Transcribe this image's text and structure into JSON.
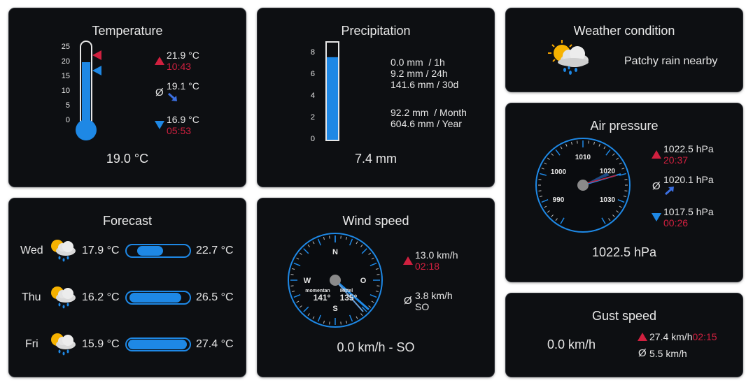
{
  "temperature": {
    "title": "Temperature",
    "scale_ticks": [
      "25",
      "20",
      "15",
      "10",
      "5",
      "0"
    ],
    "fill_level": 0.76,
    "max_value": "21.9 °C",
    "max_time": "10:43",
    "avg_symbol": "Ø",
    "avg_value": "19.1 °C",
    "min_value": "16.9 °C",
    "min_time": "05:53",
    "current": "19.0 °C"
  },
  "precipitation": {
    "title": "Precipitation",
    "scale_ticks": [
      "8",
      "6",
      "4",
      "2",
      "0"
    ],
    "fill_level": 0.85,
    "rows": [
      {
        "value": "0.0 mm",
        "period": "/ 1h"
      },
      {
        "value": "9.2 mm",
        "period": "/ 24h"
      },
      {
        "value": "141.6 mm",
        "period": "/ 30d"
      },
      {
        "value": "92.2 mm",
        "period": "/ Month"
      },
      {
        "value": "604.6 mm",
        "period": "/ Year"
      }
    ],
    "current": "7.4 mm"
  },
  "weather": {
    "title": "Weather condition",
    "icon": "sun-cloud-rain-icon",
    "condition": "Patchy rain nearby"
  },
  "pressure": {
    "title": "Air pressure",
    "dial_labels": [
      "1010",
      "1000",
      "1020",
      "990",
      "1030"
    ],
    "max_value": "1022.5 hPa",
    "max_time": "20:37",
    "avg_symbol": "Ø",
    "avg_value": "1020.1 hPa",
    "min_value": "1017.5 hPa",
    "min_time": "00:26",
    "current": "1022.5 hPa"
  },
  "forecast": {
    "title": "Forecast",
    "days": [
      {
        "day": "Wed",
        "icon": "sun-cloud-rain-icon",
        "low": "17.9 °C",
        "high": "22.7 °C",
        "bar_start": 0.15,
        "bar_end": 0.6
      },
      {
        "day": "Thu",
        "icon": "sun-cloud-rain-icon",
        "low": "16.2 °C",
        "high": "26.5 °C",
        "bar_start": 0.02,
        "bar_end": 0.9
      },
      {
        "day": "Fri",
        "icon": "sun-cloud-rain-icon",
        "low": "15.9 °C",
        "high": "27.4 °C",
        "bar_start": 0.0,
        "bar_end": 1.0
      }
    ]
  },
  "wind": {
    "title": "Wind speed",
    "compass": {
      "n": "N",
      "s": "S",
      "w": "W",
      "o": "O"
    },
    "momentan_label": "momentan",
    "momentan_value": "141°",
    "mittel_label": "Mittel",
    "mittel_value": "135°",
    "max_value": "13.0 km/h",
    "max_time": "02:18",
    "avg_symbol": "Ø",
    "avg_value": "3.8 km/h",
    "avg_dir": "SO",
    "current": "0.0 km/h - SO"
  },
  "gust": {
    "title": "Gust speed",
    "current": "0.0 km/h",
    "max_value": "27.4 km/h",
    "max_time": "02:15",
    "avg_symbol": "Ø",
    "avg_value": "5.5 km/h"
  },
  "colors": {
    "accent": "#1e88e5",
    "alert": "#d0203f",
    "card": "#0d0f12"
  }
}
